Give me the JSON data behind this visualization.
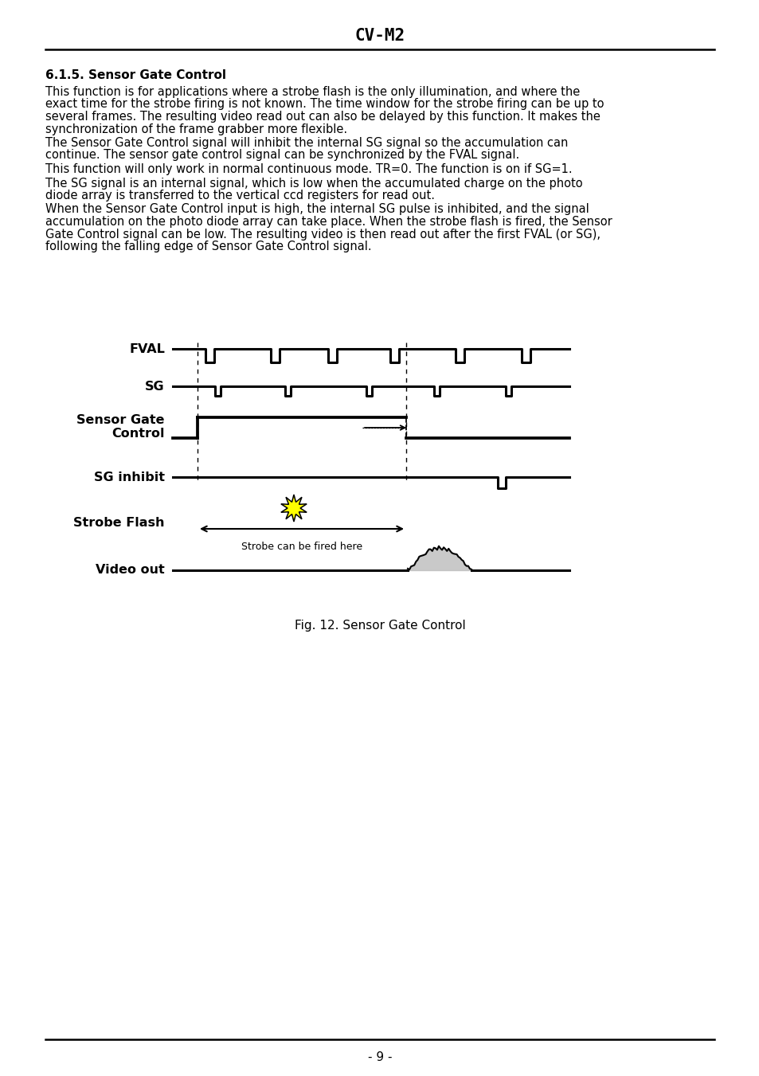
{
  "title": "CV-M2",
  "section_title": "6.1.5. Sensor Gate Control",
  "body_paragraphs": [
    "This function is for applications where a strobe flash is the only illumination, and where the\nexact time for the strobe firing is not known. The time window for the strobe firing can be up to\nseveral frames. The resulting video read out can also be delayed by this function. It makes the\nsynchronization of the frame grabber more flexible.",
    "The Sensor Gate Control signal will inhibit the internal SG signal so the accumulation can\ncontinue. The sensor gate control signal can be synchronized by the FVAL signal.",
    "This function will only work in normal continuous mode. TR=0. The function is on if SG=1.",
    "The SG signal is an internal signal, which is low when the accumulated charge on the photo\ndiode array is transferred to the vertical ccd registers for read out.",
    "When the Sensor Gate Control input is high, the internal SG pulse is inhibited, and the signal\naccumulation on the photo diode array can take place. When the strobe flash is fired, the Sensor\nGate Control signal can be low. The resulting video is then read out after the first FVAL (or SG),\nfollowing the falling edge of Sensor Gate Control signal."
  ],
  "fig_caption": "Fig. 12. Sensor Gate Control",
  "page_number": "- 9 -",
  "bg_color": "#ffffff",
  "text_color": "#000000"
}
